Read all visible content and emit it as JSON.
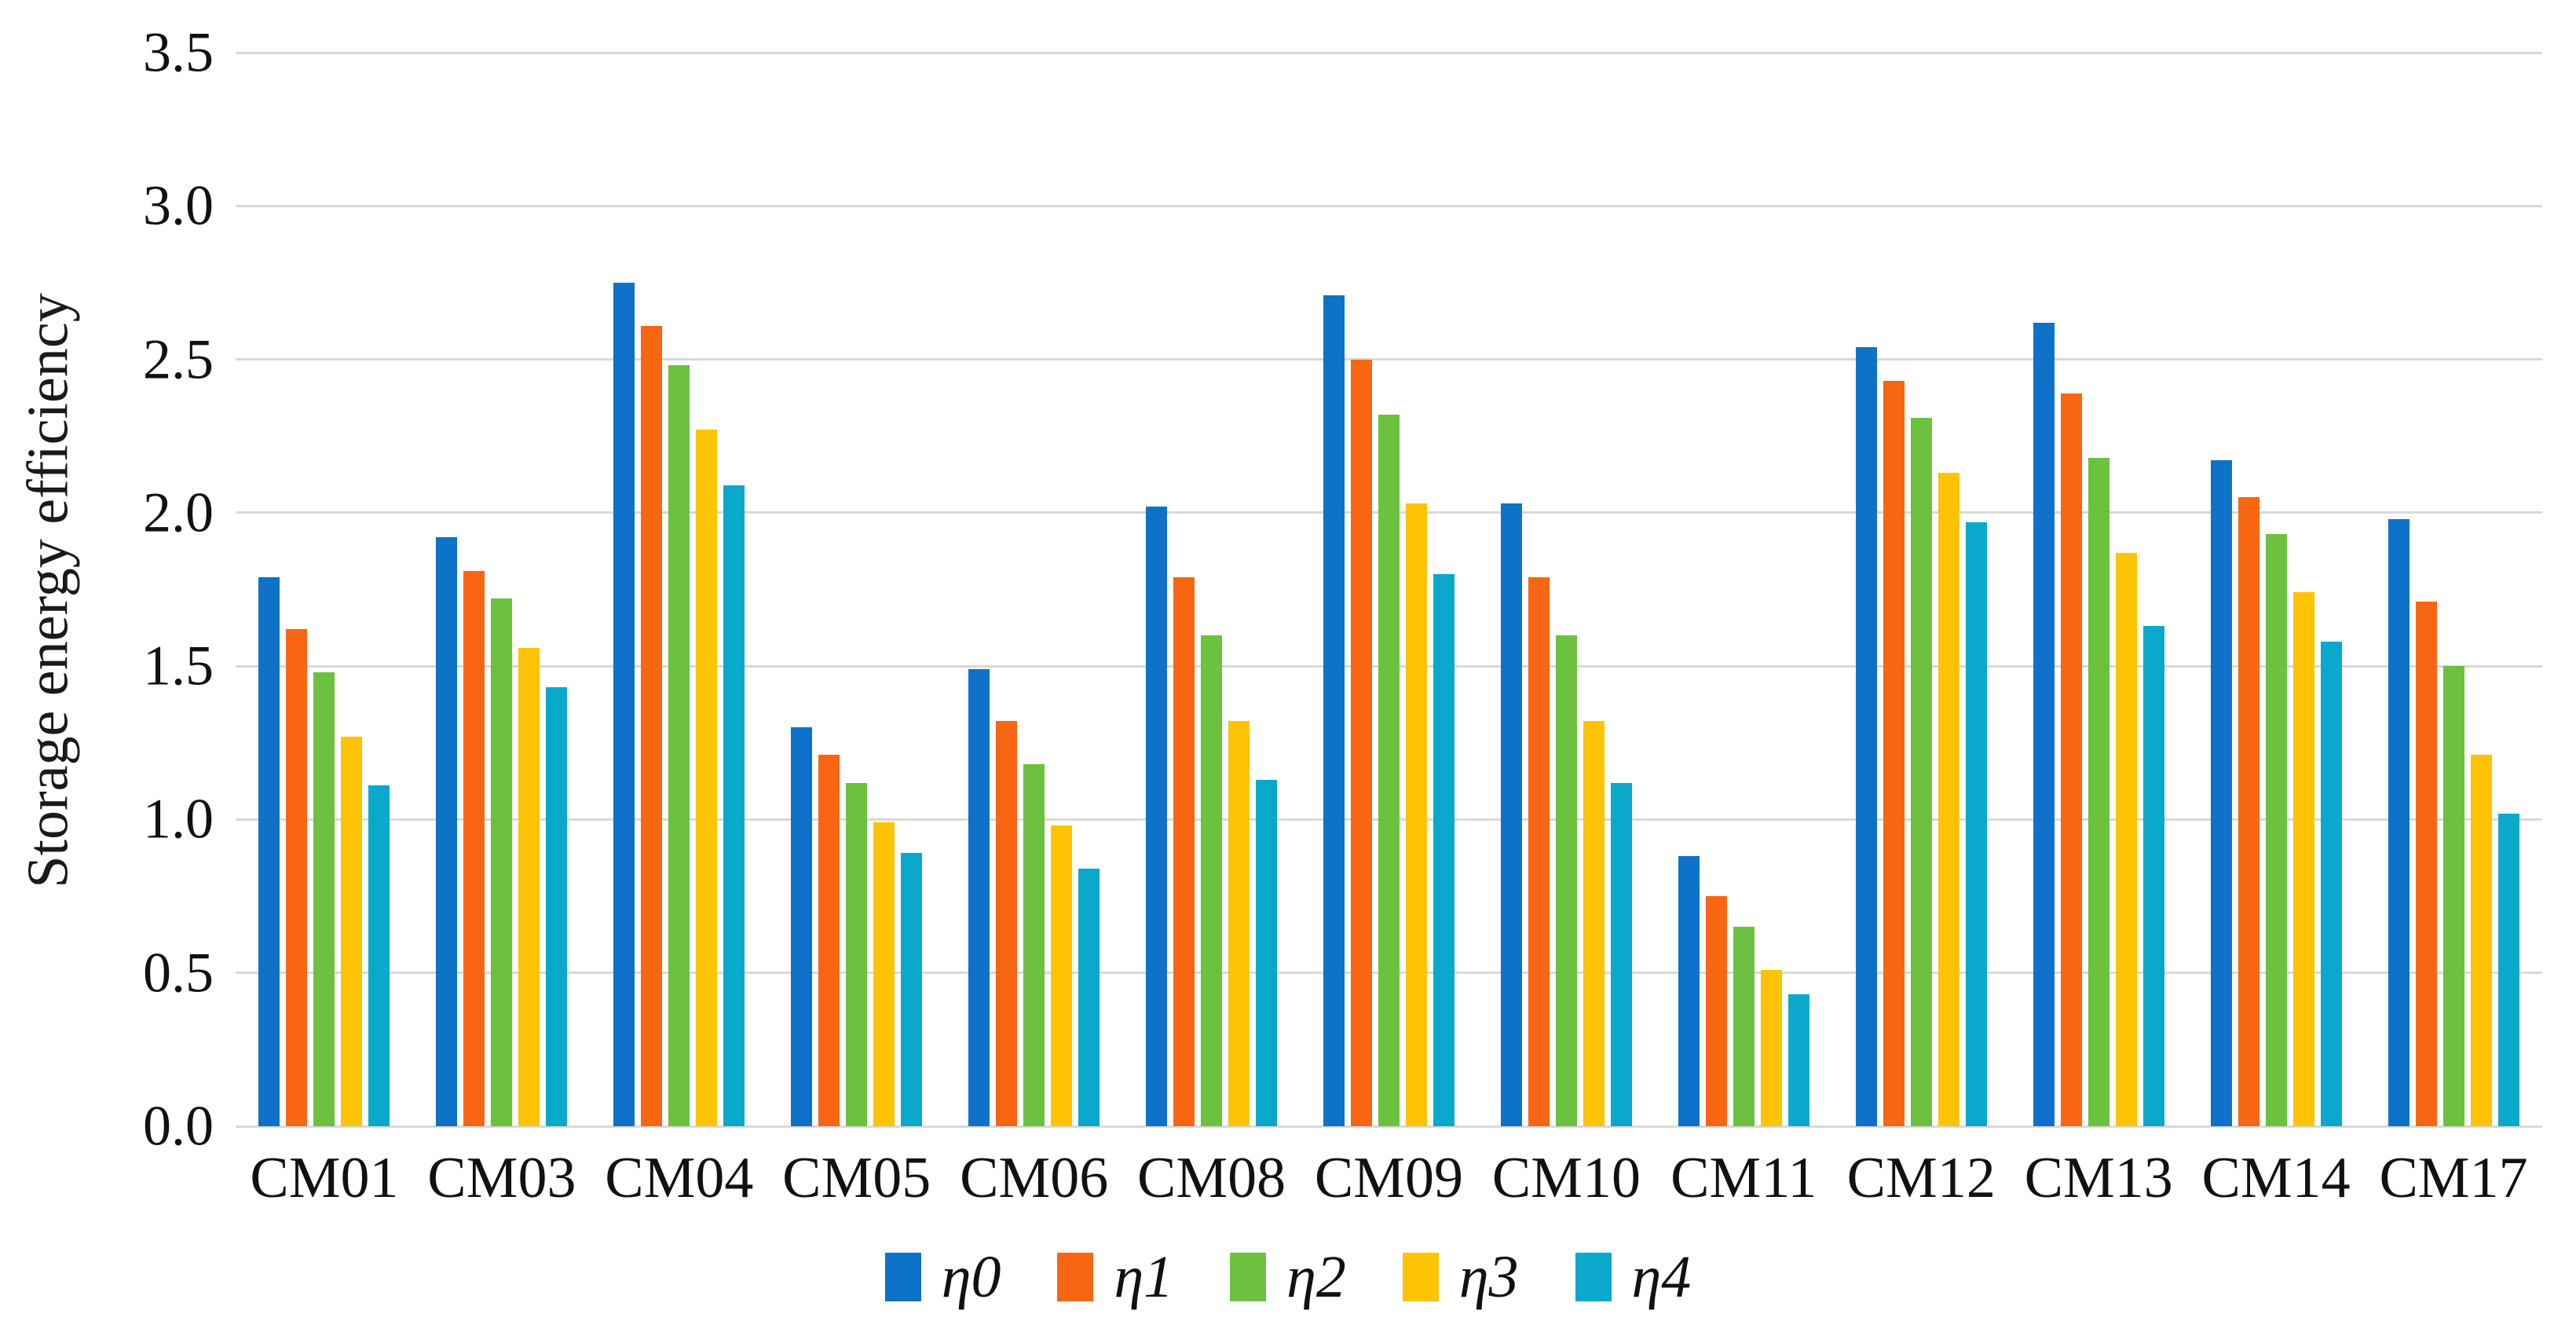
{
  "chart_data": {
    "type": "bar",
    "title": "",
    "ylabel": "Storage energy efficiency",
    "xlabel": "",
    "categories": [
      "CM01",
      "CM03",
      "CM04",
      "CM05",
      "CM06",
      "CM08",
      "CM09",
      "CM10",
      "CM11",
      "CM12",
      "CM13",
      "CM14",
      "CM17"
    ],
    "series": [
      {
        "name": "η0",
        "color": "#0d72c8",
        "values": [
          1.79,
          1.92,
          2.75,
          1.3,
          1.49,
          2.02,
          2.71,
          2.03,
          0.88,
          2.54,
          2.62,
          2.17,
          1.98
        ]
      },
      {
        "name": "η1",
        "color": "#f96613",
        "values": [
          1.62,
          1.81,
          2.61,
          1.21,
          1.32,
          1.79,
          2.5,
          1.79,
          0.75,
          2.43,
          2.39,
          2.05,
          1.71
        ]
      },
      {
        "name": "η2",
        "color": "#6cc13f",
        "values": [
          1.48,
          1.72,
          2.48,
          1.12,
          1.18,
          1.6,
          2.32,
          1.6,
          0.65,
          2.31,
          2.18,
          1.93,
          1.5
        ]
      },
      {
        "name": "η3",
        "color": "#fec303",
        "values": [
          1.27,
          1.56,
          2.27,
          0.99,
          0.98,
          1.32,
          2.03,
          1.32,
          0.51,
          2.13,
          1.87,
          1.74,
          1.21
        ]
      },
      {
        "name": "η4",
        "color": "#0aa9cb",
        "values": [
          1.11,
          1.43,
          2.09,
          0.89,
          0.84,
          1.13,
          1.8,
          1.12,
          0.43,
          1.97,
          1.63,
          1.58,
          1.02
        ]
      }
    ],
    "ylim": [
      0,
      3.5
    ],
    "ytick_step": 0.5,
    "yticks": [
      "0.0",
      "0.5",
      "1.0",
      "1.5",
      "2.0",
      "2.5",
      "3.0",
      "3.5"
    ],
    "grid": true,
    "legend_position": "bottom"
  }
}
